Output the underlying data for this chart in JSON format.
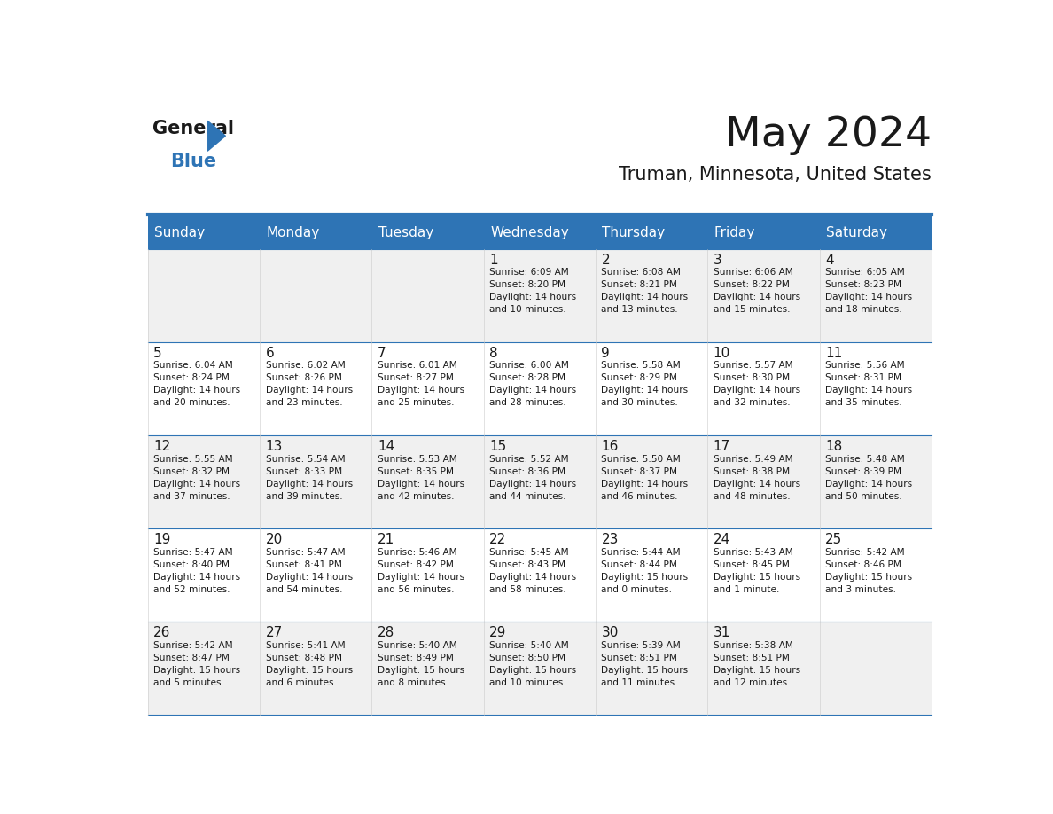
{
  "title": "May 2024",
  "subtitle": "Truman, Minnesota, United States",
  "header_bg": "#2e74b5",
  "header_text_color": "#ffffff",
  "cell_bg_even": "#f0f0f0",
  "cell_bg_odd": "#ffffff",
  "divider_color": "#2e74b5",
  "text_color": "#1a1a1a",
  "days_of_week": [
    "Sunday",
    "Monday",
    "Tuesday",
    "Wednesday",
    "Thursday",
    "Friday",
    "Saturday"
  ],
  "weeks": [
    [
      {
        "day": "",
        "info": ""
      },
      {
        "day": "",
        "info": ""
      },
      {
        "day": "",
        "info": ""
      },
      {
        "day": "1",
        "info": "Sunrise: 6:09 AM\nSunset: 8:20 PM\nDaylight: 14 hours\nand 10 minutes."
      },
      {
        "day": "2",
        "info": "Sunrise: 6:08 AM\nSunset: 8:21 PM\nDaylight: 14 hours\nand 13 minutes."
      },
      {
        "day": "3",
        "info": "Sunrise: 6:06 AM\nSunset: 8:22 PM\nDaylight: 14 hours\nand 15 minutes."
      },
      {
        "day": "4",
        "info": "Sunrise: 6:05 AM\nSunset: 8:23 PM\nDaylight: 14 hours\nand 18 minutes."
      }
    ],
    [
      {
        "day": "5",
        "info": "Sunrise: 6:04 AM\nSunset: 8:24 PM\nDaylight: 14 hours\nand 20 minutes."
      },
      {
        "day": "6",
        "info": "Sunrise: 6:02 AM\nSunset: 8:26 PM\nDaylight: 14 hours\nand 23 minutes."
      },
      {
        "day": "7",
        "info": "Sunrise: 6:01 AM\nSunset: 8:27 PM\nDaylight: 14 hours\nand 25 minutes."
      },
      {
        "day": "8",
        "info": "Sunrise: 6:00 AM\nSunset: 8:28 PM\nDaylight: 14 hours\nand 28 minutes."
      },
      {
        "day": "9",
        "info": "Sunrise: 5:58 AM\nSunset: 8:29 PM\nDaylight: 14 hours\nand 30 minutes."
      },
      {
        "day": "10",
        "info": "Sunrise: 5:57 AM\nSunset: 8:30 PM\nDaylight: 14 hours\nand 32 minutes."
      },
      {
        "day": "11",
        "info": "Sunrise: 5:56 AM\nSunset: 8:31 PM\nDaylight: 14 hours\nand 35 minutes."
      }
    ],
    [
      {
        "day": "12",
        "info": "Sunrise: 5:55 AM\nSunset: 8:32 PM\nDaylight: 14 hours\nand 37 minutes."
      },
      {
        "day": "13",
        "info": "Sunrise: 5:54 AM\nSunset: 8:33 PM\nDaylight: 14 hours\nand 39 minutes."
      },
      {
        "day": "14",
        "info": "Sunrise: 5:53 AM\nSunset: 8:35 PM\nDaylight: 14 hours\nand 42 minutes."
      },
      {
        "day": "15",
        "info": "Sunrise: 5:52 AM\nSunset: 8:36 PM\nDaylight: 14 hours\nand 44 minutes."
      },
      {
        "day": "16",
        "info": "Sunrise: 5:50 AM\nSunset: 8:37 PM\nDaylight: 14 hours\nand 46 minutes."
      },
      {
        "day": "17",
        "info": "Sunrise: 5:49 AM\nSunset: 8:38 PM\nDaylight: 14 hours\nand 48 minutes."
      },
      {
        "day": "18",
        "info": "Sunrise: 5:48 AM\nSunset: 8:39 PM\nDaylight: 14 hours\nand 50 minutes."
      }
    ],
    [
      {
        "day": "19",
        "info": "Sunrise: 5:47 AM\nSunset: 8:40 PM\nDaylight: 14 hours\nand 52 minutes."
      },
      {
        "day": "20",
        "info": "Sunrise: 5:47 AM\nSunset: 8:41 PM\nDaylight: 14 hours\nand 54 minutes."
      },
      {
        "day": "21",
        "info": "Sunrise: 5:46 AM\nSunset: 8:42 PM\nDaylight: 14 hours\nand 56 minutes."
      },
      {
        "day": "22",
        "info": "Sunrise: 5:45 AM\nSunset: 8:43 PM\nDaylight: 14 hours\nand 58 minutes."
      },
      {
        "day": "23",
        "info": "Sunrise: 5:44 AM\nSunset: 8:44 PM\nDaylight: 15 hours\nand 0 minutes."
      },
      {
        "day": "24",
        "info": "Sunrise: 5:43 AM\nSunset: 8:45 PM\nDaylight: 15 hours\nand 1 minute."
      },
      {
        "day": "25",
        "info": "Sunrise: 5:42 AM\nSunset: 8:46 PM\nDaylight: 15 hours\nand 3 minutes."
      }
    ],
    [
      {
        "day": "26",
        "info": "Sunrise: 5:42 AM\nSunset: 8:47 PM\nDaylight: 15 hours\nand 5 minutes."
      },
      {
        "day": "27",
        "info": "Sunrise: 5:41 AM\nSunset: 8:48 PM\nDaylight: 15 hours\nand 6 minutes."
      },
      {
        "day": "28",
        "info": "Sunrise: 5:40 AM\nSunset: 8:49 PM\nDaylight: 15 hours\nand 8 minutes."
      },
      {
        "day": "29",
        "info": "Sunrise: 5:40 AM\nSunset: 8:50 PM\nDaylight: 15 hours\nand 10 minutes."
      },
      {
        "day": "30",
        "info": "Sunrise: 5:39 AM\nSunset: 8:51 PM\nDaylight: 15 hours\nand 11 minutes."
      },
      {
        "day": "31",
        "info": "Sunrise: 5:38 AM\nSunset: 8:51 PM\nDaylight: 15 hours\nand 12 minutes."
      },
      {
        "day": "",
        "info": ""
      }
    ]
  ]
}
